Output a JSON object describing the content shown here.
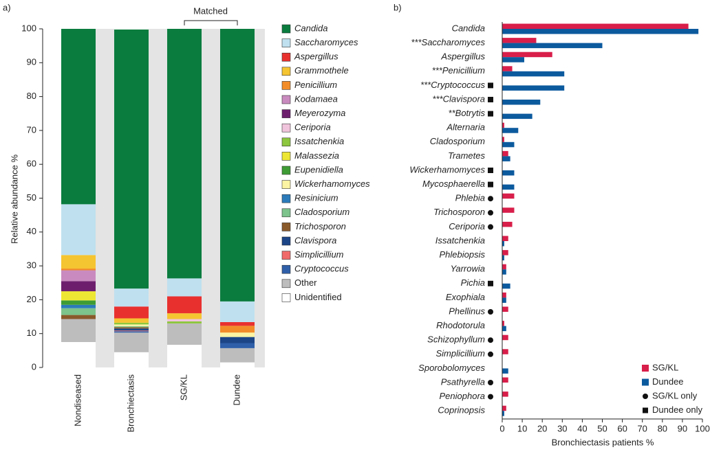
{
  "chart_data": [
    {
      "type": "stacked_bar",
      "panel_label": "a)",
      "ylabel": "Relative abundance %",
      "annotation": "Matched",
      "categories": [
        "Nondiseased",
        "Bronchiectasis",
        "SG/KL",
        "Dundee"
      ],
      "ylim": [
        0,
        100
      ],
      "yticks": [
        0,
        10,
        20,
        30,
        40,
        50,
        60,
        70,
        80,
        90,
        100
      ],
      "series": [
        {
          "name": "Candida",
          "color": "#0a7c3e",
          "values": [
            51.8,
            76.5,
            73.7,
            80.5
          ]
        },
        {
          "name": "Saccharomyces",
          "color": "#bfe0ef",
          "values": [
            15,
            5.3,
            5.3,
            6.1
          ]
        },
        {
          "name": "Aspergillus",
          "color": "#e8312f",
          "values": [
            0,
            3.5,
            5,
            1.1
          ]
        },
        {
          "name": "Grammothele",
          "color": "#f5c431",
          "values": [
            4,
            1.3,
            1.7,
            0
          ]
        },
        {
          "name": "Penicillium",
          "color": "#f28c28",
          "values": [
            0.5,
            0,
            0,
            2
          ]
        },
        {
          "name": "Kodamaea",
          "color": "#c98bbf",
          "values": [
            3.2,
            0,
            0,
            0
          ]
        },
        {
          "name": "Meyerozyma",
          "color": "#6d1f6e",
          "values": [
            3,
            0,
            0,
            0
          ]
        },
        {
          "name": "Ceriporia",
          "color": "#f0c4dc",
          "values": [
            0,
            0,
            0.7,
            0
          ]
        },
        {
          "name": "Issatchenkia",
          "color": "#8dc63f",
          "values": [
            0,
            0.5,
            0.6,
            0
          ]
        },
        {
          "name": "Malassezia",
          "color": "#ede733",
          "values": [
            2.7,
            0,
            0,
            0
          ]
        },
        {
          "name": "Eupenidiella",
          "color": "#3f9c35",
          "values": [
            1.3,
            0,
            0,
            0
          ]
        },
        {
          "name": "Wickerhamomyces",
          "color": "#fcf4a3",
          "values": [
            0,
            0.5,
            0,
            1.3
          ]
        },
        {
          "name": "Resinicium",
          "color": "#2b7bba",
          "values": [
            1,
            0,
            0,
            0
          ]
        },
        {
          "name": "Cladosporium",
          "color": "#7cc38c",
          "values": [
            2,
            0.3,
            0,
            0
          ]
        },
        {
          "name": "Trichosporon",
          "color": "#8a5a2b",
          "values": [
            1.2,
            0.4,
            0,
            0
          ]
        },
        {
          "name": "Clavispora",
          "color": "#1c4587",
          "values": [
            0,
            0.6,
            0,
            1.8
          ]
        },
        {
          "name": "Simplicillium",
          "color": "#f06a6a",
          "values": [
            0,
            0.2,
            0,
            0
          ]
        },
        {
          "name": "Cryptococcus",
          "color": "#2f5fa8",
          "values": [
            0,
            0.4,
            0,
            1.5
          ]
        },
        {
          "name": "Other",
          "color": "#bdbdbd",
          "values": [
            6.8,
            5.8,
            6.3,
            4.2
          ]
        },
        {
          "name": "Unidentified",
          "color": "#ffffff",
          "values": [
            7.5,
            4.5,
            6.7,
            1.5
          ]
        }
      ]
    },
    {
      "type": "hbar",
      "panel_label": "b)",
      "xlabel": "Bronchiectasis patients %",
      "categories": [
        "Candida",
        "***Saccharomyces",
        "Aspergillus",
        "***Penicillium",
        "***Cryptococcus",
        "***Clavispora",
        "**Botrytis",
        "Alternaria",
        "Cladosporium",
        "Trametes",
        "Wickerhamomyces",
        "Mycosphaerella",
        "Phlebia",
        "Trichosporon",
        "Ceriporia",
        "Issatchenkia",
        "Phlebiopsis",
        "Yarrowia",
        "Pichia",
        "Exophiala",
        "Phellinus",
        "Rhodotorula",
        "Schizophyllum",
        "Simplicillium",
        "Sporobolomyces",
        "Psathyrella",
        "Peniophora",
        "Coprinopsis"
      ],
      "markers": [
        null,
        null,
        null,
        null,
        "square",
        "square",
        "square",
        null,
        null,
        null,
        "square",
        "square",
        "circle",
        "circle",
        "circle",
        null,
        null,
        null,
        "square",
        null,
        "circle",
        null,
        "circle",
        "circle",
        null,
        "circle",
        "circle",
        null
      ],
      "xlim": [
        0,
        100
      ],
      "xticks": [
        0,
        10,
        20,
        30,
        40,
        50,
        60,
        70,
        80,
        90,
        100
      ],
      "series": [
        {
          "name": "SG/KL",
          "color": "#d81e4a",
          "values": [
            93,
            17,
            25,
            5,
            0,
            0,
            0,
            1,
            1,
            3,
            0,
            0,
            6,
            6,
            5,
            3,
            3,
            2,
            0,
            2,
            3,
            1,
            3,
            3,
            0,
            3,
            3,
            2
          ]
        },
        {
          "name": "Dundee",
          "color": "#0c5a9e",
          "values": [
            98,
            50,
            11,
            31,
            31,
            19,
            15,
            8,
            6,
            4,
            6,
            6,
            0,
            0,
            0,
            1,
            1,
            2,
            4,
            2,
            0,
            2,
            0,
            0,
            3,
            0,
            0,
            1
          ]
        }
      ],
      "marker_legend": [
        {
          "name": "SG/KL only",
          "marker": "circle"
        },
        {
          "name": "Dundee only",
          "marker": "square"
        }
      ]
    }
  ]
}
